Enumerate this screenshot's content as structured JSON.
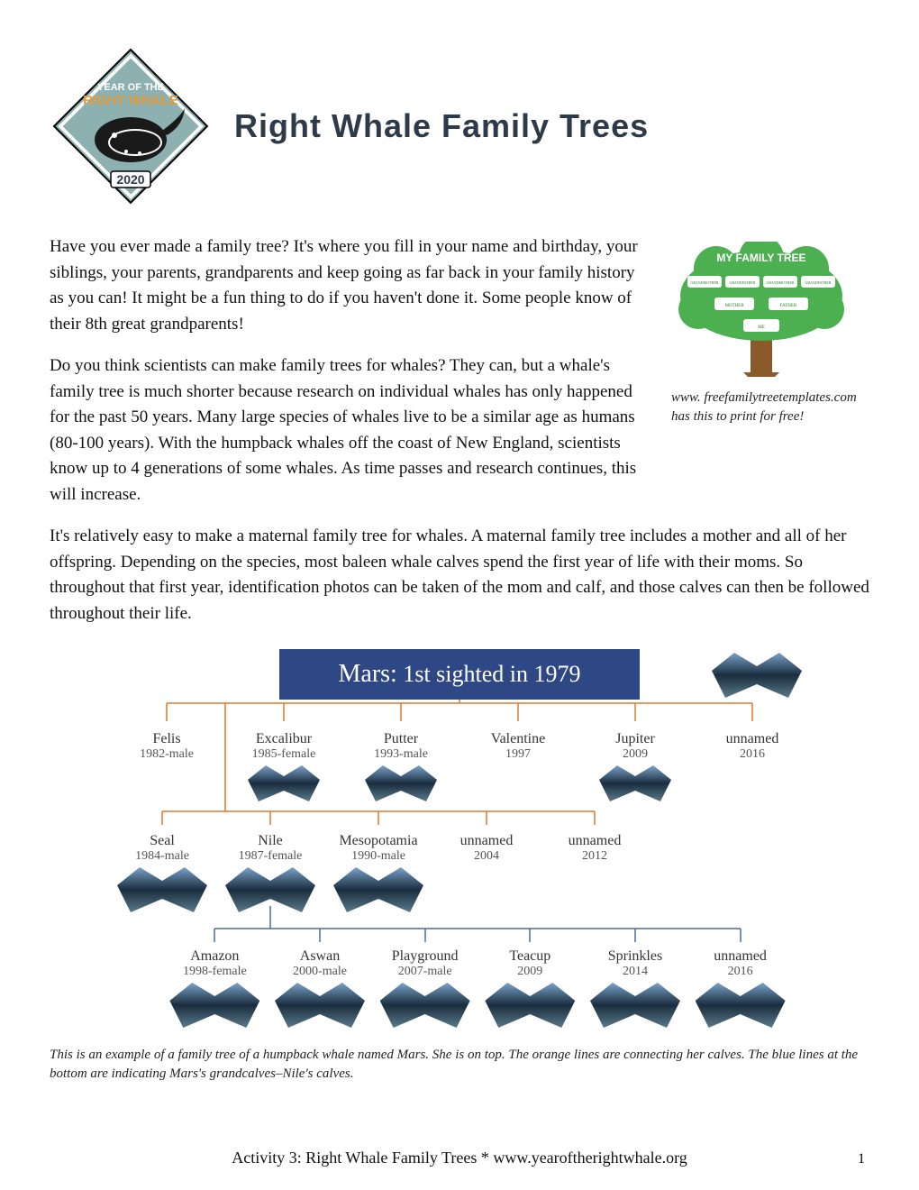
{
  "logo": {
    "top_text": "YEAR OF THE",
    "main_text": "RIGHT WHALE",
    "year": "2020",
    "bg_color": "#8db0b0",
    "accent_color": "#e69b3a",
    "text_color": "#ffffff"
  },
  "title": "Right Whale Family Trees",
  "title_color": "#2d3a4a",
  "paragraphs": {
    "p1": "Have you ever made a family tree? It's where you fill in your name and birthday, your siblings, your parents, grandparents and keep going as far back in your family history as you can! It might be a fun thing to do if you haven't done it. Some people know of their 8th great grandparents!",
    "p2": "Do you think scientists can make family trees for whales? They can, but a whale's family tree is much shorter because research on individual whales has only happened for the past 50 years. Many large species of whales live to be a similar age as humans (80-100 years). With the humpback whales off the coast of New England, scientists know up to 4 generations of some whales. As time passes and research continues, this will increase.",
    "p3": "It's relatively easy to make a maternal family tree for whales. A maternal family tree includes a mother and all of her offspring. Depending on the species, most baleen whale calves spend the first year of life with their moms. So throughout that first year, identification photos can be taken of the mom and calf, and those calves can then be followed throughout their life."
  },
  "aside": {
    "tree_title": "MY FAMILY TREE",
    "tree_labels": [
      "GRANDMOTHER",
      "GRANDFATHER",
      "GRANDMOTHER",
      "GRANDFATHER",
      "MOTHER",
      "FATHER",
      "ME"
    ],
    "caption": "www. freefamilytreetemplates.com has this to print for free!"
  },
  "diagram": {
    "banner_name": "Mars:",
    "banner_rest": " 1st sighted in 1979",
    "banner_bg": "#2e4785",
    "line_color_gen1": "#d97b2f",
    "line_color_gen2": "#4a6a9a",
    "gen1": [
      {
        "name": "Felis",
        "meta": "1982-male",
        "fluke": false
      },
      {
        "name": "Excalibur",
        "meta": "1985-female",
        "fluke": true
      },
      {
        "name": "Putter",
        "meta": "1993-male",
        "fluke": true
      },
      {
        "name": "Valentine",
        "meta": "1997",
        "fluke": false
      },
      {
        "name": "Jupiter",
        "meta": "2009",
        "fluke": true
      },
      {
        "name": "unnamed",
        "meta": "2016",
        "fluke": false
      }
    ],
    "gen1b": [
      {
        "name": "Seal",
        "meta": "1984-male",
        "fluke": true
      },
      {
        "name": "Nile",
        "meta": "1987-female",
        "fluke": true
      },
      {
        "name": "Mesopotamia",
        "meta": "1990-male",
        "fluke": true
      },
      {
        "name": "unnamed",
        "meta": "2004",
        "fluke": false
      },
      {
        "name": "unnamed",
        "meta": "2012",
        "fluke": false
      }
    ],
    "gen2": [
      {
        "name": "Amazon",
        "meta": "1998-female",
        "fluke": true
      },
      {
        "name": "Aswan",
        "meta": "2000-male",
        "fluke": true
      },
      {
        "name": "Playground",
        "meta": "2007-male",
        "fluke": true
      },
      {
        "name": "Teacup",
        "meta": "2009",
        "fluke": true
      },
      {
        "name": "Sprinkles",
        "meta": "2014",
        "fluke": true
      },
      {
        "name": "unnamed",
        "meta": "2016",
        "fluke": true
      }
    ],
    "caption": "This is an example of a family tree of a humpback whale named Mars. She is on top. The orange lines are connecting her calves. The blue lines at the bottom are indicating Mars's grandcalves–Nile's calves."
  },
  "footer": {
    "text": "Activity 3: Right Whale Family Trees  *   www.yearoftherightwhale.org",
    "page": "1"
  }
}
